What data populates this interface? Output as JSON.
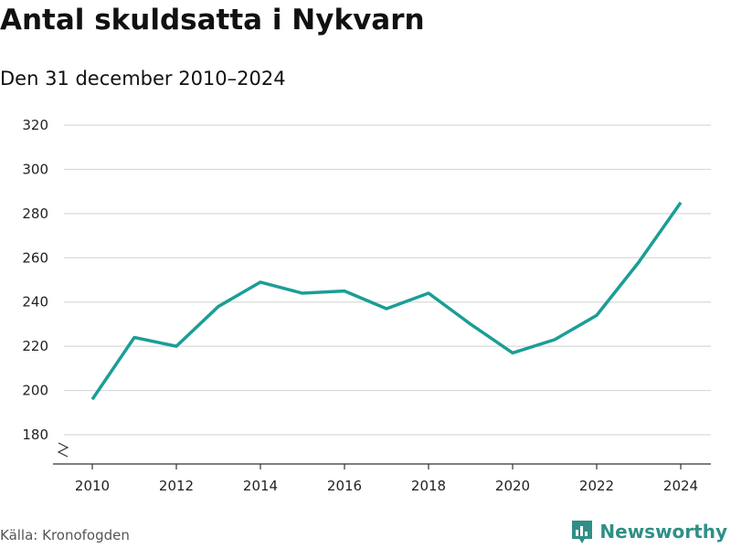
{
  "title": "Antal skuldsatta i Nykvarn",
  "subtitle": "Den 31 december 2010–2024",
  "source": "Källa: Kronofogden",
  "brand": "Newsworthy",
  "colors": {
    "line": "#1a9e96",
    "grid": "#d9d9d9",
    "axis": "#333333",
    "brand": "#2f8f86"
  },
  "chart_data": {
    "type": "line",
    "title": "Antal skuldsatta i Nykvarn",
    "subtitle": "Den 31 december 2010–2024",
    "xlabel": "",
    "ylabel": "",
    "x": [
      2010,
      2011,
      2012,
      2013,
      2014,
      2015,
      2016,
      2017,
      2018,
      2019,
      2020,
      2021,
      2022,
      2023,
      2024
    ],
    "series": [
      {
        "values": [
          196,
          224,
          220,
          238,
          249,
          244,
          245,
          237,
          244,
          230,
          217,
          223,
          234,
          258,
          285
        ]
      }
    ],
    "ylim": [
      180,
      320
    ],
    "y_ticks": [
      180,
      200,
      220,
      240,
      260,
      280,
      300,
      320
    ],
    "x_ticks": [
      2010,
      2012,
      2014,
      2016,
      2018,
      2020,
      2022,
      2024
    ],
    "grid": true,
    "y_axis_break": true
  }
}
